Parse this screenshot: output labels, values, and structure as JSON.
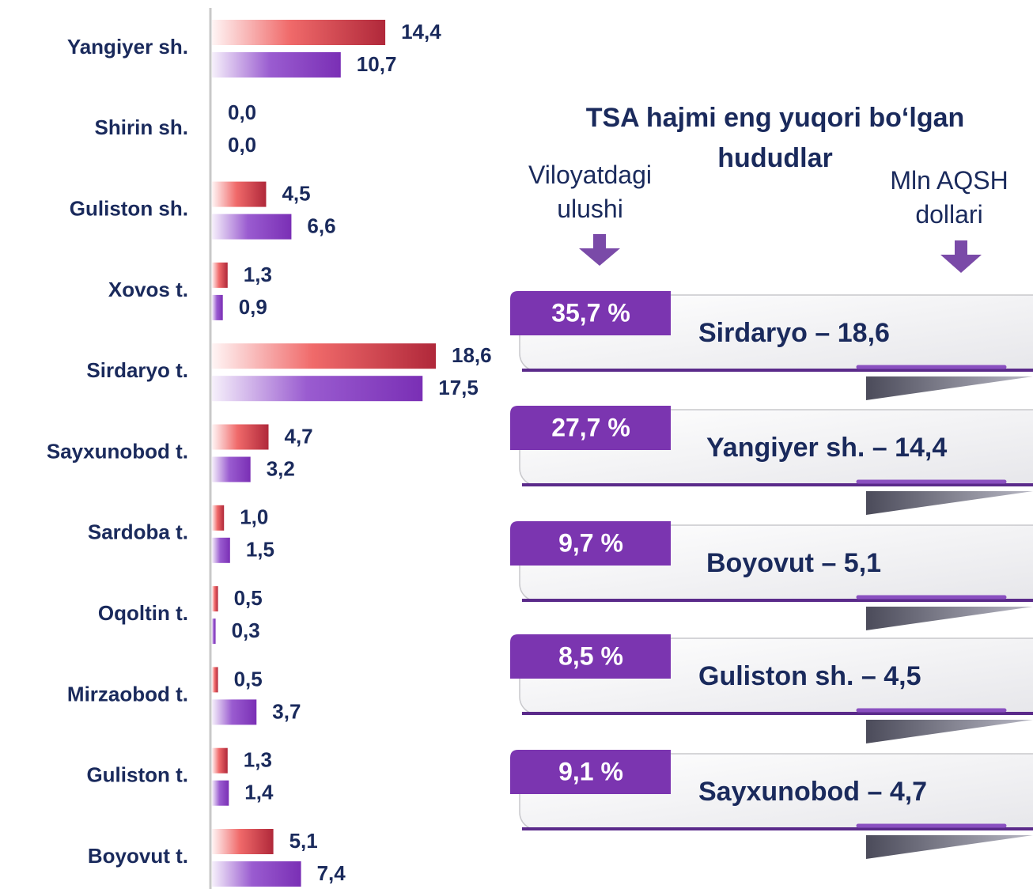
{
  "chart_data": {
    "type": "bar",
    "orientation": "horizontal",
    "categories": [
      "Yangiyer sh.",
      "Shirin sh.",
      "Guliston sh.",
      "Xovos t.",
      "Sirdaryo t.",
      "Sayxunobod t.",
      "Sardoba t.",
      "Oqoltin t.",
      "Mirzaobod t.",
      "Guliston t.",
      "Boyovut t."
    ],
    "series": [
      {
        "color": "#b0283a",
        "values": [
          14.4,
          0.0,
          4.5,
          1.3,
          18.6,
          4.7,
          1.0,
          0.5,
          0.5,
          1.3,
          5.1
        ],
        "value_labels": [
          "14,4",
          "0,0",
          "4,5",
          "1,3",
          "18,6",
          "4,7",
          "1,0",
          "0,5",
          "0,5",
          "1,3",
          "5,1"
        ]
      },
      {
        "color": "#7a2fb5",
        "values": [
          10.7,
          0.0,
          6.6,
          0.9,
          17.5,
          3.2,
          1.5,
          0.3,
          3.7,
          1.4,
          7.4
        ],
        "value_labels": [
          "10,7",
          "0,0",
          "6,6",
          "0,9",
          "17,5",
          "3,2",
          "1,5",
          "0,3",
          "3,7",
          "1,4",
          "7,4"
        ]
      }
    ]
  },
  "panel": {
    "title": "TSA hajmi eng yuqori bo‘lgan hududlar",
    "left_label": "Viloyatdagi ulushi",
    "right_label": "Mln AQSH dollari",
    "items": [
      {
        "share": "35,7 %",
        "label": "Sirdaryo – 18,6"
      },
      {
        "share": "27,7 %",
        "label": "Yangiyer sh. – 14,4"
      },
      {
        "share": "9,7 %",
        "label": "Boyovut – 5,1"
      },
      {
        "share": "8,5 %",
        "label": "Guliston sh. – 4,5"
      },
      {
        "share": "9,1 %",
        "label": "Sayxunobod – 4,7"
      }
    ]
  }
}
